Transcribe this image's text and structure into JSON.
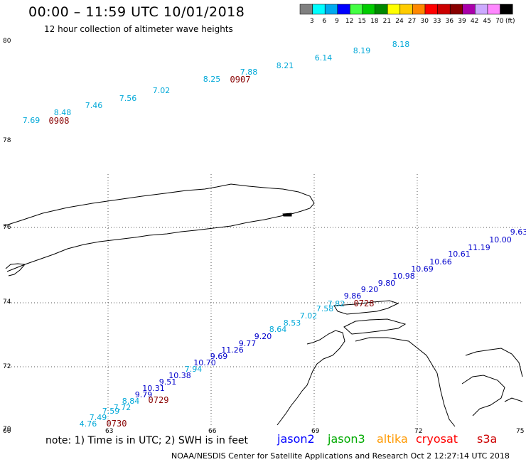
{
  "header": {
    "title": "00:00 – 11:59 UTC 10/01/2018",
    "subtitle": "12 hour collection of altimeter wave heights"
  },
  "legend": {
    "unit": "(ft)",
    "bins": [
      {
        "label": "3",
        "color": "#808080"
      },
      {
        "label": "6",
        "color": "#00ffff"
      },
      {
        "label": "9",
        "color": "#00aaee"
      },
      {
        "label": "12",
        "color": "#0000ff"
      },
      {
        "label": "15",
        "color": "#44ff44"
      },
      {
        "label": "18",
        "color": "#00cc00"
      },
      {
        "label": "21",
        "color": "#008800"
      },
      {
        "label": "24",
        "color": "#ffff00"
      },
      {
        "label": "27",
        "color": "#ffcc00"
      },
      {
        "label": "30",
        "color": "#ff8800"
      },
      {
        "label": "33",
        "color": "#ff0000"
      },
      {
        "label": "36",
        "color": "#cc0000"
      },
      {
        "label": "39",
        "color": "#880000"
      },
      {
        "label": "42",
        "color": "#aa00aa"
      },
      {
        "label": "45",
        "color": "#ccaaff"
      },
      {
        "label": "70",
        "color": "#ff88ff"
      },
      {
        "label": "",
        "color": "#000000"
      }
    ]
  },
  "axes": {
    "lat_labels": [
      "80",
      "78",
      "76",
      "74",
      "72",
      "70"
    ],
    "lon_labels": [
      "60",
      "63",
      "66",
      "69",
      "72",
      "75"
    ]
  },
  "observations": [
    {
      "text": "7.69",
      "color": "#00a8d8"
    },
    {
      "text": "8.48",
      "color": "#00a8d8"
    },
    {
      "text": "7.46",
      "color": "#00a8d8"
    },
    {
      "text": "7.56",
      "color": "#00a8d8"
    },
    {
      "text": "7.02",
      "color": "#00a8d8"
    },
    {
      "text": "8.25",
      "color": "#00a8d8"
    },
    {
      "text": "7.88",
      "color": "#00a8d8"
    },
    {
      "text": "8.21",
      "color": "#00a8d8"
    },
    {
      "text": "6.14",
      "color": "#00a8d8"
    },
    {
      "text": "8.19",
      "color": "#00a8d8"
    },
    {
      "text": "8.18",
      "color": "#00a8d8"
    },
    {
      "text": "9.63",
      "color": "#0000cc"
    },
    {
      "text": "10.00",
      "color": "#0000cc"
    },
    {
      "text": "11.19",
      "color": "#0000cc"
    },
    {
      "text": "10.61",
      "color": "#0000cc"
    },
    {
      "text": "10.66",
      "color": "#0000cc"
    },
    {
      "text": "10.69",
      "color": "#0000cc"
    },
    {
      "text": "10.98",
      "color": "#0000cc"
    },
    {
      "text": "9.80",
      "color": "#0000cc"
    },
    {
      "text": "9.20",
      "color": "#0000cc"
    },
    {
      "text": "9.86",
      "color": "#0000cc"
    },
    {
      "text": "7.82",
      "color": "#00a8d8"
    },
    {
      "text": "7.58",
      "color": "#00a8d8"
    },
    {
      "text": "7.02",
      "color": "#00a8d8"
    },
    {
      "text": "8.53",
      "color": "#00a8d8"
    },
    {
      "text": "8.64",
      "color": "#00a8d8"
    },
    {
      "text": "9.20",
      "color": "#0000cc"
    },
    {
      "text": "9.77",
      "color": "#0000cc"
    },
    {
      "text": "11.26",
      "color": "#0000cc"
    },
    {
      "text": "9.69",
      "color": "#0000cc"
    },
    {
      "text": "10.70",
      "color": "#0000cc"
    },
    {
      "text": "7.94",
      "color": "#00a8d8"
    },
    {
      "text": "10.38",
      "color": "#0000cc"
    },
    {
      "text": "9.51",
      "color": "#0000cc"
    },
    {
      "text": "10.31",
      "color": "#0000cc"
    },
    {
      "text": "9.79",
      "color": "#0000cc"
    },
    {
      "text": "8.84",
      "color": "#00a8d8"
    },
    {
      "text": "7.72",
      "color": "#00a8d8"
    },
    {
      "text": "7.59",
      "color": "#00a8d8"
    },
    {
      "text": "7.49",
      "color": "#00a8d8"
    },
    {
      "text": "4.76",
      "color": "#00a8d8"
    }
  ],
  "pass_times": [
    {
      "text": "0908",
      "color": "#880000"
    },
    {
      "text": "0907",
      "color": "#880000"
    },
    {
      "text": "0728",
      "color": "#880000"
    },
    {
      "text": "0729",
      "color": "#880000"
    },
    {
      "text": "0730",
      "color": "#880000"
    }
  ],
  "footer": {
    "note": "note: 1) Time is in UTC; 2) SWH is in feet",
    "satellites": [
      {
        "name": "jason2",
        "color": "#0000ff"
      },
      {
        "name": "jason3",
        "color": "#00aa00"
      },
      {
        "name": "altika",
        "color": "#ff9900"
      },
      {
        "name": "cryosat",
        "color": "#ff0000"
      },
      {
        "name": "s3a",
        "color": "#cc0000"
      }
    ],
    "credit": "NOAA/NESDIS Center for Satellite Applications and Research   Oct  2 12:27:14 UTC 2018"
  }
}
